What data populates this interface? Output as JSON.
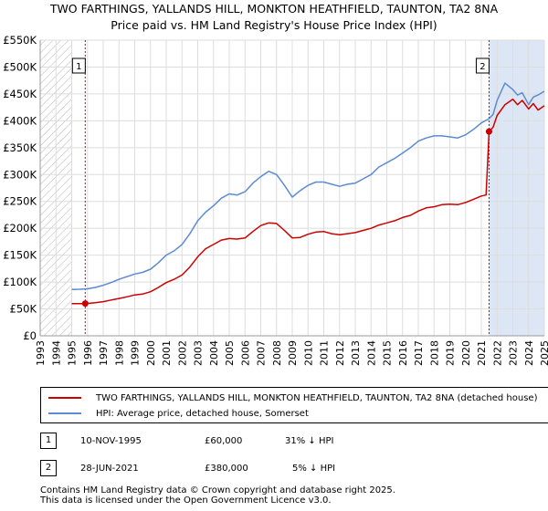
{
  "header": {
    "title_line1": "TWO FARTHINGS, YALLANDS HILL, MONKTON HEATHFIELD, TAUNTON, TA2 8NA",
    "title_line2": "Price paid vs. HM Land Registry's House Price Index (HPI)"
  },
  "colors": {
    "red": "#cc0000",
    "blue": "#5b8bd0",
    "shade": "#dce6f5",
    "hatch": "#b0b0b0",
    "grid": "#dddddd"
  },
  "chart_data": {
    "type": "line",
    "title": "Price paid vs. HM Land Registry's House Price Index (HPI)",
    "xlabel": "",
    "ylabel": "",
    "xlim": [
      1993,
      2025
    ],
    "ylim": [
      0,
      550000
    ],
    "y_ticks": [
      0,
      50000,
      100000,
      150000,
      200000,
      250000,
      300000,
      350000,
      400000,
      450000,
      500000,
      550000
    ],
    "y_tick_labels": [
      "£0",
      "£50K",
      "£100K",
      "£150K",
      "£200K",
      "£250K",
      "£300K",
      "£350K",
      "£400K",
      "£450K",
      "£500K",
      "£550K"
    ],
    "x_ticks": [
      1993,
      1994,
      1995,
      1996,
      1997,
      1998,
      1999,
      2000,
      2001,
      2002,
      2003,
      2004,
      2005,
      2006,
      2007,
      2008,
      2009,
      2010,
      2011,
      2012,
      2013,
      2014,
      2015,
      2016,
      2017,
      2018,
      2019,
      2020,
      2021,
      2022,
      2023,
      2024,
      2025
    ],
    "x_tick_labels": [
      "1993",
      "1994",
      "1995",
      "1996",
      "1997",
      "1998",
      "1999",
      "2000",
      "2001",
      "2002",
      "2003",
      "2004",
      "2005",
      "2006",
      "2007",
      "2008",
      "2009",
      "2010",
      "2011",
      "2012",
      "2013",
      "2014",
      "2015",
      "2016",
      "2017",
      "2018",
      "2019",
      "2020",
      "2021",
      "2022",
      "2023",
      "2024",
      "2025"
    ],
    "hatched_until": 1995.0,
    "series": [
      {
        "name": "TWO FARTHINGS, YALLANDS HILL, MONKTON HEATHFIELD, TAUNTON, TA2 8NA (detached house)",
        "color": "#cc0000",
        "x": [
          1995.0,
          1995.86,
          1996.5,
          1997.0,
          1997.5,
          1998.0,
          1998.5,
          1999.0,
          1999.5,
          2000.0,
          2000.5,
          2001.0,
          2001.5,
          2002.0,
          2002.5,
          2003.0,
          2003.5,
          2004.0,
          2004.5,
          2005.0,
          2005.5,
          2006.0,
          2006.5,
          2007.0,
          2007.5,
          2008.0,
          2008.5,
          2009.0,
          2009.5,
          2010.0,
          2010.5,
          2011.0,
          2011.5,
          2012.0,
          2012.5,
          2013.0,
          2013.5,
          2014.0,
          2014.5,
          2015.0,
          2015.5,
          2016.0,
          2016.5,
          2017.0,
          2017.5,
          2018.0,
          2018.5,
          2019.0,
          2019.5,
          2020.0,
          2020.5,
          2021.0,
          2021.3,
          2021.49,
          2021.75,
          2022.0,
          2022.5,
          2023.0,
          2023.3,
          2023.6,
          2024.0,
          2024.3,
          2024.6,
          2025.0
        ],
        "values": [
          60000,
          60000,
          61500,
          63500,
          66500,
          69500,
          72500,
          76000,
          77500,
          82000,
          90000,
          99000,
          105000,
          113000,
          128000,
          147000,
          162000,
          170000,
          178000,
          181000,
          180000,
          182000,
          194000,
          205000,
          210000,
          209000,
          196000,
          182000,
          183000,
          189000,
          193000,
          194000,
          190000,
          188000,
          190000,
          192000,
          196000,
          200000,
          206000,
          210000,
          214000,
          220000,
          224000,
          232000,
          238000,
          240000,
          244000,
          245000,
          244000,
          248000,
          254000,
          260000,
          262000,
          380000,
          388000,
          410000,
          430000,
          440000,
          430000,
          438000,
          422000,
          432000,
          420000,
          428000
        ]
      },
      {
        "name": "HPI: Average price, detached house, Somerset",
        "color": "#5b8bd0",
        "x": [
          1995.0,
          1995.5,
          1996.0,
          1996.5,
          1997.0,
          1997.5,
          1998.0,
          1998.5,
          1999.0,
          1999.5,
          2000.0,
          2000.5,
          2001.0,
          2001.5,
          2002.0,
          2002.5,
          2003.0,
          2003.5,
          2004.0,
          2004.5,
          2005.0,
          2005.5,
          2006.0,
          2006.5,
          2007.0,
          2007.5,
          2008.0,
          2008.5,
          2009.0,
          2009.5,
          2010.0,
          2010.5,
          2011.0,
          2011.5,
          2012.0,
          2012.5,
          2013.0,
          2013.5,
          2014.0,
          2014.5,
          2015.0,
          2015.5,
          2016.0,
          2016.5,
          2017.0,
          2017.5,
          2018.0,
          2018.5,
          2019.0,
          2019.5,
          2020.0,
          2020.5,
          2021.0,
          2021.49,
          2021.75,
          2022.0,
          2022.5,
          2023.0,
          2023.3,
          2023.6,
          2024.0,
          2024.3,
          2024.6,
          2025.0
        ],
        "values": [
          86000,
          86500,
          87500,
          90000,
          94000,
          99000,
          105000,
          110000,
          115000,
          118000,
          124000,
          136000,
          150000,
          158000,
          170000,
          190000,
          214000,
          230000,
          242000,
          256000,
          264000,
          262000,
          268000,
          284000,
          296000,
          306000,
          300000,
          280000,
          258000,
          270000,
          280000,
          286000,
          286000,
          282000,
          278000,
          282000,
          284000,
          292000,
          300000,
          314000,
          322000,
          330000,
          340000,
          350000,
          362000,
          368000,
          372000,
          372000,
          370000,
          368000,
          374000,
          384000,
          396000,
          404000,
          412000,
          438000,
          470000,
          458000,
          448000,
          452000,
          430000,
          444000,
          448000,
          455000
        ]
      }
    ],
    "markers": [
      {
        "label": "1",
        "x": 1995.86,
        "value": 60000
      },
      {
        "label": "2",
        "x": 2021.49,
        "value": 380000
      }
    ]
  },
  "legend": {
    "items": [
      {
        "label": "TWO FARTHINGS, YALLANDS HILL, MONKTON HEATHFIELD, TAUNTON, TA2 8NA (detached house)"
      },
      {
        "label": "HPI: Average price, detached house, Somerset"
      }
    ]
  },
  "sales": [
    {
      "num": "1",
      "date": "10-NOV-1995",
      "price": "£60,000",
      "hpi": "31% ↓ HPI"
    },
    {
      "num": "2",
      "date": "28-JUN-2021",
      "price": "£380,000",
      "hpi": "5% ↓ HPI"
    }
  ],
  "footer": {
    "line1": "Contains HM Land Registry data © Crown copyright and database right 2025.",
    "line2": "This data is licensed under the Open Government Licence v3.0."
  }
}
